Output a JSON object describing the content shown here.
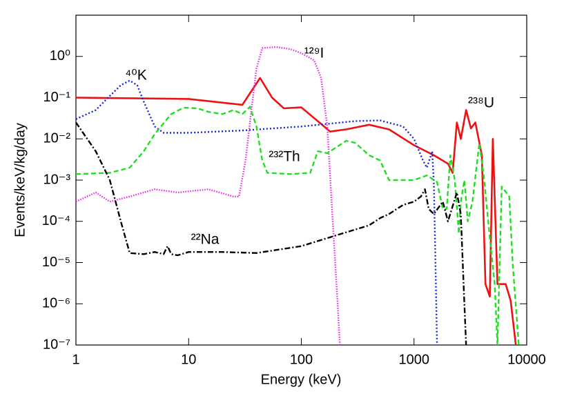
{
  "chart_data": {
    "type": "line",
    "x_label": "Energy (keV)",
    "y_label": "Events/keV/kg/day",
    "xscale": "log",
    "yscale": "log",
    "xlim": [
      1,
      10000
    ],
    "xticks": [
      1,
      10,
      100,
      1000,
      10000
    ],
    "ylim": [
      1e-07,
      10
    ],
    "yticks": [
      {
        "value": 1e-07,
        "label": "10⁻⁷"
      },
      {
        "value": 1e-06,
        "label": "10⁻⁶"
      },
      {
        "value": 1e-05,
        "label": "10⁻⁵"
      },
      {
        "value": 0.0001,
        "label": "10⁻⁴"
      },
      {
        "value": 0.001,
        "label": "10⁻³"
      },
      {
        "value": 0.01,
        "label": "10⁻²"
      },
      {
        "value": 0.1,
        "label": "10⁻¹"
      },
      {
        "value": 1,
        "label": "10⁰"
      }
    ],
    "legend": "none",
    "series": [
      {
        "name": "²³⁸U",
        "color": "#ee1111",
        "style": "solid",
        "x": [
          1,
          10,
          30,
          43,
          55,
          70,
          100,
          150,
          180,
          250,
          400,
          600,
          1000,
          1500,
          2000,
          2200,
          2400,
          2600,
          2900,
          3200,
          3500,
          4000,
          4300,
          4700,
          5000,
          5500,
          6500,
          7200,
          8000
        ],
        "values": [
          0.1,
          0.093,
          0.067,
          0.3,
          0.1,
          0.055,
          0.058,
          0.023,
          0.015,
          0.017,
          0.022,
          0.017,
          0.007,
          0.004,
          0.0025,
          0.0015,
          0.025,
          0.01,
          0.05,
          0.018,
          0.025,
          0.004,
          3e-06,
          1.5e-06,
          0.01,
          3e-06,
          3e-06,
          1.2e-06,
          1e-07
        ]
      },
      {
        "name": "⁴⁰K",
        "color": "#1122dd",
        "style": "dotted",
        "x": [
          1,
          1.5,
          2,
          2.5,
          3,
          3.5,
          4,
          5,
          6,
          10,
          30,
          100,
          300,
          500,
          800,
          1000,
          1200,
          1300,
          1450,
          1500,
          1550,
          1600
        ],
        "values": [
          0.03,
          0.05,
          0.11,
          0.2,
          0.26,
          0.2,
          0.08,
          0.02,
          0.014,
          0.014,
          0.016,
          0.02,
          0.027,
          0.028,
          0.02,
          0.01,
          0.003,
          0.002,
          0.005,
          0.0008,
          1e-05,
          1e-07
        ]
      },
      {
        "name": "¹²⁹I",
        "color": "#ee22ee",
        "style": "fine-dotted",
        "x": [
          1,
          1.5,
          2,
          3,
          5,
          8,
          15,
          25,
          28,
          32,
          36,
          40,
          45,
          60,
          80,
          100,
          130,
          150,
          170,
          190,
          210,
          220
        ],
        "values": [
          0.0003,
          0.0005,
          0.0003,
          0.0004,
          0.0006,
          0.0005,
          0.0006,
          0.0004,
          0.0004,
          0.003,
          0.05,
          0.5,
          1.6,
          1.7,
          1.5,
          1.2,
          0.8,
          0.3,
          0.02,
          0.0001,
          1e-06,
          1e-07
        ]
      },
      {
        "name": "²³²Th",
        "color": "#22dd22",
        "style": "dashed",
        "x": [
          1,
          2,
          3,
          4,
          5,
          7,
          9,
          12,
          15,
          20,
          25,
          30,
          35,
          40,
          45,
          50,
          80,
          120,
          140,
          170,
          200,
          250,
          300,
          400,
          500,
          600,
          1000,
          1300,
          1600,
          1800,
          1950,
          2100,
          2300,
          2500,
          2600,
          2800,
          3000,
          3300,
          3800,
          4200,
          4700,
          5200,
          5500,
          6000,
          7000,
          7500,
          8500
        ],
        "values": [
          0.0014,
          0.0015,
          0.002,
          0.005,
          0.013,
          0.04,
          0.057,
          0.055,
          0.045,
          0.04,
          0.05,
          0.04,
          0.06,
          0.02,
          0.003,
          0.0015,
          0.0014,
          0.0015,
          0.005,
          0.0045,
          0.006,
          0.009,
          0.008,
          0.004,
          0.003,
          0.001,
          0.001,
          0.0013,
          0.0009,
          0.0002,
          0.0002,
          0.004,
          0.001,
          5e-05,
          0.0003,
          0.001,
          0.0001,
          0.0003,
          0.008,
          0.001,
          4e-05,
          3e-06,
          1e-07,
          0.0007,
          0.0004,
          1e-05,
          1e-07
        ]
      },
      {
        "name": "²²Na",
        "color": "#000000",
        "style": "dashdot",
        "x": [
          1,
          1.5,
          2,
          2.5,
          3,
          4,
          5,
          6,
          6.5,
          7,
          8,
          10,
          20,
          40,
          100,
          200,
          400,
          500,
          600,
          800,
          1000,
          1150,
          1250,
          1350,
          1500,
          1800,
          2000,
          2400,
          2600,
          2800,
          2900
        ],
        "values": [
          0.025,
          0.005,
          0.001,
          0.0001,
          1.7e-05,
          1.6e-05,
          1.8e-05,
          1.6e-05,
          2.5e-05,
          1.6e-05,
          1.5e-05,
          1.8e-05,
          1.8e-05,
          1.7e-05,
          2.5e-05,
          4.5e-05,
          8e-05,
          0.00012,
          0.00015,
          0.00025,
          0.0003,
          0.0004,
          0.0006,
          0.0002,
          0.00015,
          0.0003,
          0.0001,
          0.0005,
          0.00015,
          1e-06,
          1e-07
        ]
      }
    ]
  }
}
